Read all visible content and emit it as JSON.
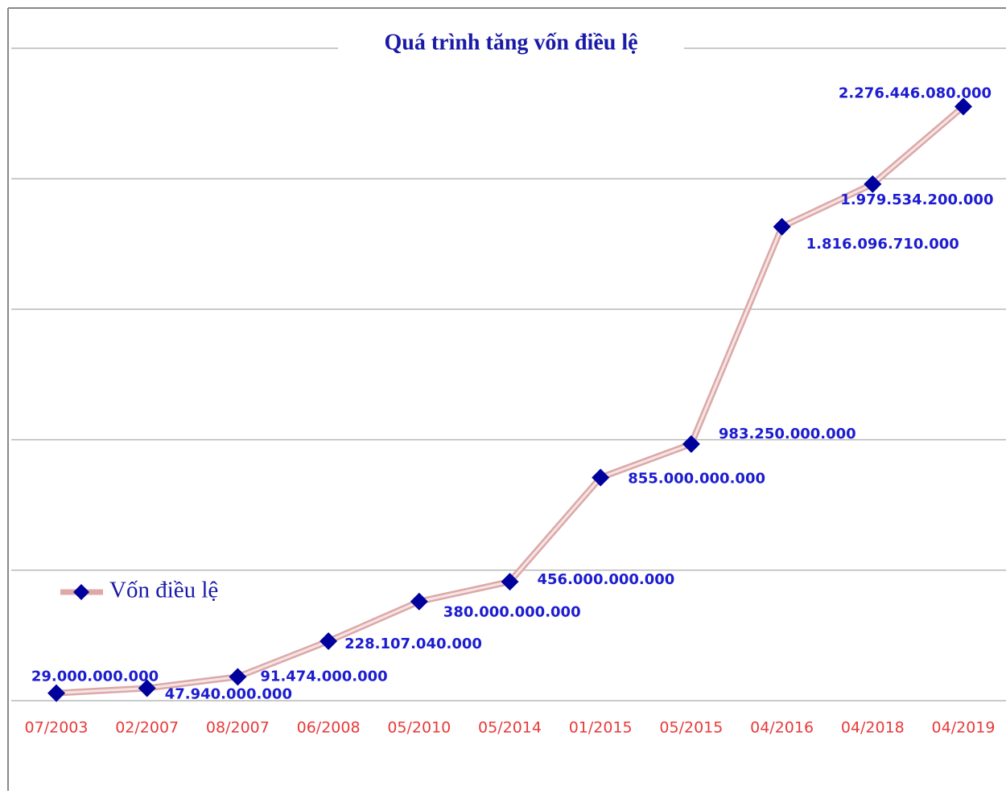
{
  "chart_data": {
    "type": "line",
    "title": "Quá trình tăng vốn điều lệ",
    "categories": [
      "07/2003",
      "02/2007",
      "08/2007",
      "06/2008",
      "05/2010",
      "05/2014",
      "01/2015",
      "05/2015",
      "04/2016",
      "04/2018",
      "04/2019"
    ],
    "series": [
      {
        "name": "Vốn điều lệ",
        "color": "#00009c",
        "line_color": "#dca8a8",
        "values": [
          29000000000,
          47940000000,
          91474000000,
          228107040000,
          380000000000,
          456000000000,
          855000000000,
          983250000000,
          1816096710000,
          1979534200000,
          2276446080000
        ],
        "value_labels": [
          "29.000.000.000",
          "47.940.000.000",
          "91.474.000.000",
          "228.107.040.000",
          "380.000.000.000",
          "456.000.000.000",
          "855.000.000.000",
          "983.250.000.000",
          "1.816.096.710.000",
          "1.979.534.200.000",
          "2.276.446.080.000"
        ]
      }
    ],
    "ylim": [
      0,
      2500000000000
    ],
    "yticks": [
      0,
      500000000000,
      1000000000000,
      1500000000000,
      2000000000000,
      2500000000000
    ],
    "grid": true,
    "legend": "left"
  }
}
